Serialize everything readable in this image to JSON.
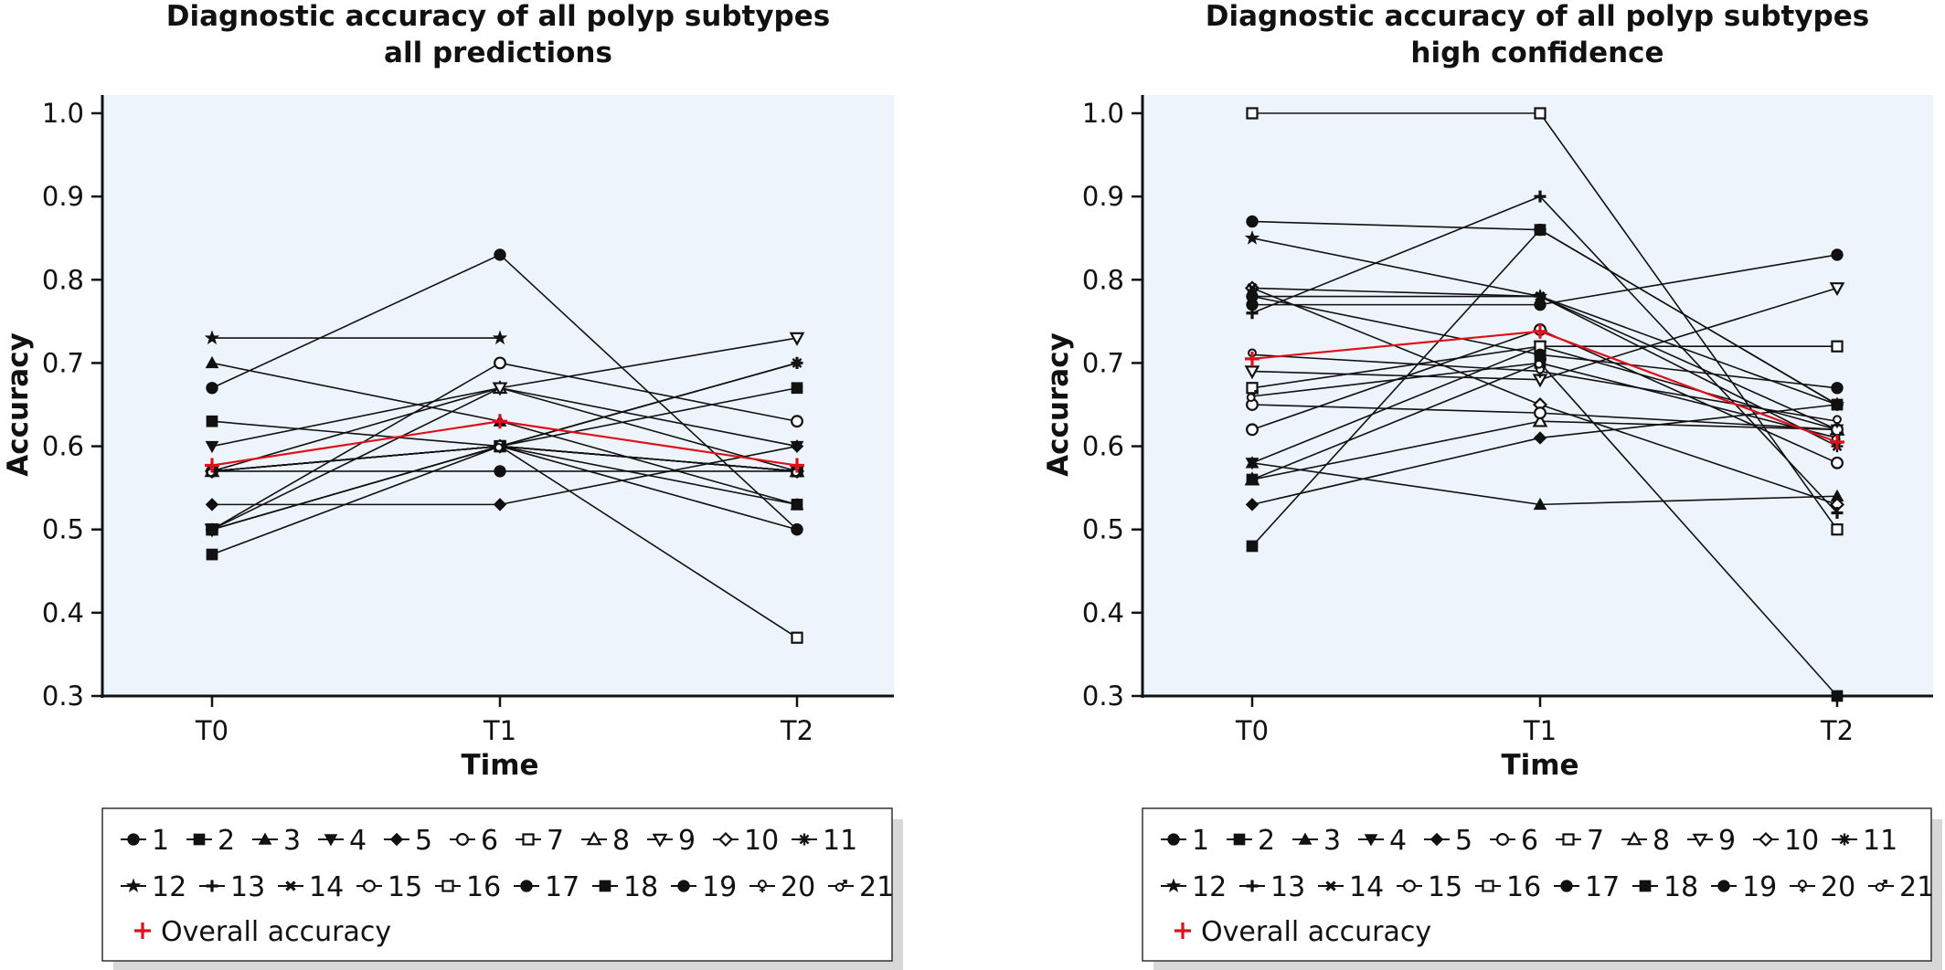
{
  "chart_data": [
    {
      "type": "line",
      "title": "Diagnostic accuracy of all polyp subtypes",
      "subtitle": "all predictions",
      "xlabel": "Time",
      "ylabel": "Accuracy",
      "categories": [
        "T0",
        "T1",
        "T2"
      ],
      "ylim": [
        0.3,
        1.0
      ],
      "yticks": [
        "0.3",
        "0.4",
        "0.5",
        "0.6",
        "0.7",
        "0.8",
        "0.9",
        "1.0"
      ],
      "grid": false,
      "legend_position": "bottom",
      "series": [
        {
          "name": "1",
          "values": [
            0.67,
            0.83,
            0.5
          ]
        },
        {
          "name": "2",
          "values": [
            0.47,
            0.6,
            0.53
          ]
        },
        {
          "name": "3",
          "values": [
            0.7,
            0.63,
            0.53
          ]
        },
        {
          "name": "4",
          "values": [
            0.6,
            0.67,
            0.6
          ]
        },
        {
          "name": "5",
          "values": [
            0.53,
            0.53,
            0.6
          ]
        },
        {
          "name": "6",
          "values": [
            0.5,
            0.7,
            0.63
          ]
        },
        {
          "name": "7",
          "values": [
            0.5,
            0.6,
            0.37
          ]
        },
        {
          "name": "8",
          "values": [
            0.57,
            0.67,
            0.57
          ]
        },
        {
          "name": "9",
          "values": [
            0.5,
            0.67,
            0.73
          ]
        },
        {
          "name": "10",
          "values": [
            0.57,
            0.6,
            0.57
          ]
        },
        {
          "name": "11",
          "values": [
            0.57,
            0.6,
            0.7
          ]
        },
        {
          "name": "12",
          "values": [
            0.73,
            0.73,
            null
          ]
        },
        {
          "name": "13",
          "values": [
            0.57,
            0.6,
            0.7
          ]
        },
        {
          "name": "14",
          "values": [
            0.57,
            0.6,
            0.57
          ]
        },
        {
          "name": "15",
          "values": [
            0.57,
            0.6,
            0.57
          ]
        },
        {
          "name": "16",
          "values": [
            0.5,
            0.6,
            0.57
          ]
        },
        {
          "name": "17",
          "values": [
            0.57,
            0.57,
            0.57
          ]
        },
        {
          "name": "18",
          "values": [
            0.63,
            0.6,
            0.67
          ]
        },
        {
          "name": "19",
          "values": [
            0.5,
            0.6,
            0.5
          ]
        },
        {
          "name": "20",
          "values": [
            0.57,
            0.6,
            0.57
          ]
        },
        {
          "name": "21",
          "values": [
            0.57,
            0.6,
            0.57
          ]
        },
        {
          "name": "Overall accuracy",
          "values": [
            0.577,
            0.63,
            0.577
          ],
          "color": "#e0101a"
        }
      ]
    },
    {
      "type": "line",
      "title": "Diagnostic accuracy of all polyp subtypes",
      "subtitle": "high confidence",
      "xlabel": "Time",
      "ylabel": "Accuracy",
      "categories": [
        "T0",
        "T1",
        "T2"
      ],
      "ylim": [
        0.3,
        1.0
      ],
      "yticks": [
        "0.3",
        "0.4",
        "0.5",
        "0.6",
        "0.7",
        "0.8",
        "0.9",
        "1.0"
      ],
      "grid": false,
      "legend_position": "bottom",
      "series": [
        {
          "name": "1",
          "values": [
            0.87,
            0.86,
            0.65
          ]
        },
        {
          "name": "2",
          "values": [
            0.48,
            0.86,
            0.65
          ]
        },
        {
          "name": "3",
          "values": [
            0.58,
            0.53,
            0.54
          ]
        },
        {
          "name": "4",
          "values": [
            0.58,
            0.72,
            0.62
          ]
        },
        {
          "name": "5",
          "values": [
            0.53,
            0.61,
            0.65
          ]
        },
        {
          "name": "6",
          "values": [
            0.62,
            0.74,
            0.58
          ]
        },
        {
          "name": "7",
          "values": [
            1.0,
            1.0,
            0.5
          ]
        },
        {
          "name": "8",
          "values": [
            0.56,
            0.63,
            0.62
          ]
        },
        {
          "name": "9",
          "values": [
            0.69,
            0.68,
            0.79
          ]
        },
        {
          "name": "10",
          "values": [
            0.79,
            0.65,
            0.53
          ]
        },
        {
          "name": "11",
          "values": [
            0.78,
            0.78,
            0.6
          ]
        },
        {
          "name": "12",
          "values": [
            0.85,
            0.78,
            0.65
          ]
        },
        {
          "name": "13",
          "values": [
            0.76,
            0.9,
            0.52
          ]
        },
        {
          "name": "14",
          "values": [
            0.79,
            0.78,
            0.62
          ]
        },
        {
          "name": "15",
          "values": [
            0.65,
            0.64,
            0.62
          ]
        },
        {
          "name": "16",
          "values": [
            0.67,
            0.72,
            0.72
          ]
        },
        {
          "name": "17",
          "values": [
            0.77,
            0.77,
            0.83
          ]
        },
        {
          "name": "18",
          "values": [
            0.56,
            0.7,
            0.3
          ]
        },
        {
          "name": "19",
          "values": [
            0.78,
            0.71,
            0.67
          ]
        },
        {
          "name": "20",
          "values": [
            0.71,
            0.69,
            0.63
          ]
        },
        {
          "name": "21",
          "values": [
            0.66,
            0.7,
            0.61
          ]
        },
        {
          "name": "Overall accuracy",
          "values": [
            0.705,
            0.738,
            0.605
          ],
          "color": "#e0101a"
        }
      ]
    }
  ],
  "legend": {
    "rows": [
      [
        "1",
        "2",
        "3",
        "4",
        "5",
        "6",
        "7",
        "8",
        "9",
        "10",
        "11"
      ],
      [
        "12",
        "13",
        "14",
        "15",
        "16",
        "17",
        "18",
        "19",
        "20",
        "21"
      ],
      [
        "Overall accuracy"
      ]
    ]
  },
  "colors": {
    "plot_background": "#eef4fb",
    "series": "#111111",
    "overall": "#e0101a"
  }
}
